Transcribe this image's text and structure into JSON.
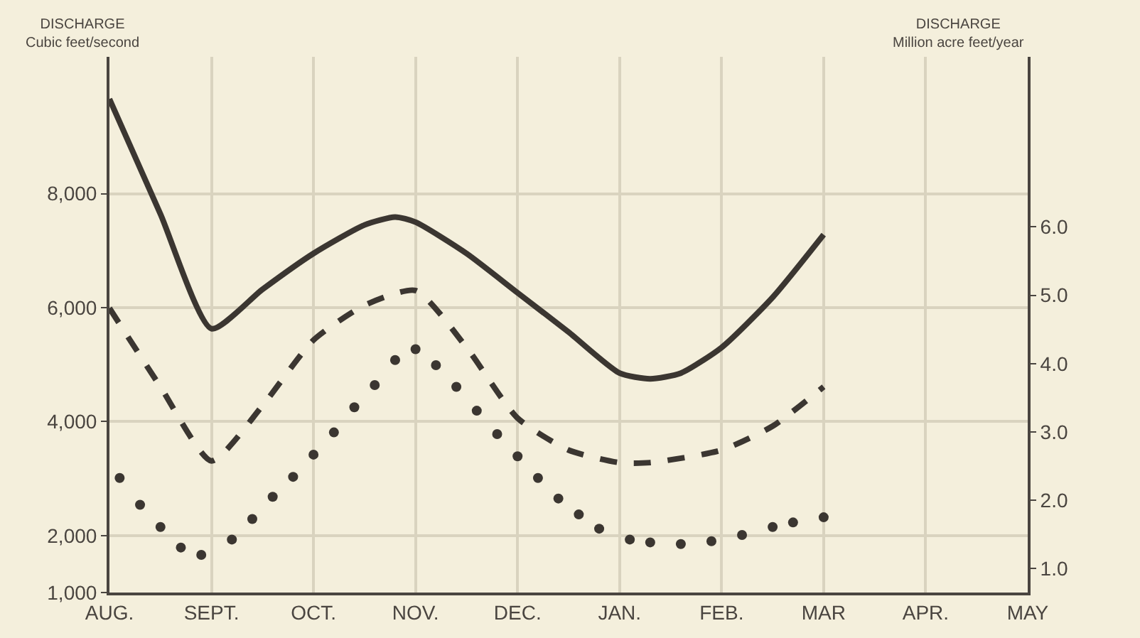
{
  "chart_data": {
    "type": "line",
    "ylabel": "DISCHARGE\nCubic feet/second",
    "y2label": "DISCHARGE\nMillion acre feet/year",
    "categories": [
      "AUG.",
      null,
      null,
      null,
      null,
      null,
      null,
      null,
      null,
      null,
      "SEPT.",
      null,
      null,
      null,
      null,
      null,
      null,
      null,
      null,
      null,
      "OCT.",
      null,
      null,
      null,
      null,
      null,
      null,
      null,
      null,
      null,
      "NOV.",
      null,
      null,
      null,
      null,
      null,
      null,
      null,
      null,
      null,
      "DEC.",
      null,
      null,
      null,
      null,
      null,
      null,
      null,
      null,
      null,
      "JAN.",
      null,
      null,
      null,
      null,
      null,
      null,
      null,
      null,
      null,
      "FEB.",
      null,
      null,
      null,
      null,
      null,
      null,
      null,
      null,
      null,
      "MAR",
      null,
      null,
      null,
      null,
      null,
      null,
      null,
      null,
      null,
      "APR.",
      null,
      null,
      null,
      null,
      null,
      null,
      null,
      null,
      null,
      "MAY"
    ],
    "ylim": [
      1000,
      10400
    ],
    "yticks": [
      {
        "value": 1000,
        "label": "1,000"
      },
      {
        "value": 2000,
        "label": "2,000"
      },
      {
        "value": 4000,
        "label": "4,000"
      },
      {
        "value": 6000,
        "label": "6,000"
      },
      {
        "value": 8000,
        "label": "8,000"
      }
    ],
    "y2lim": [
      0.65,
      8.49
    ],
    "y2ticks": [
      {
        "value": 1,
        "label": "1.0"
      },
      {
        "value": 2,
        "label": "2.0"
      },
      {
        "value": 3,
        "label": "3.0"
      },
      {
        "value": 4,
        "label": "4.0"
      },
      {
        "value": 5,
        "label": "5.0"
      },
      {
        "value": 6,
        "label": "6.0"
      }
    ],
    "grid": true,
    "series": [
      {
        "type": "line",
        "line_style": "solid",
        "color": "#3b3631",
        "values": [
          9660,
          null,
          null,
          null,
          null,
          7640,
          null,
          null,
          null,
          null,
          5630,
          null,
          null,
          null,
          null,
          6320,
          null,
          null,
          null,
          null,
          6950,
          null,
          null,
          null,
          null,
          7450,
          null,
          null,
          7590,
          null,
          7500,
          null,
          null,
          null,
          null,
          6950,
          null,
          null,
          null,
          null,
          6260,
          null,
          null,
          null,
          null,
          5570,
          null,
          null,
          null,
          null,
          4850,
          null,
          null,
          4750,
          null,
          null,
          4850,
          null,
          null,
          null,
          5300,
          null,
          null,
          null,
          null,
          6180,
          null,
          null,
          null,
          null,
          7280,
          null,
          null,
          null,
          null,
          null,
          null,
          null,
          null,
          null,
          null,
          null,
          null,
          null,
          null,
          null,
          null,
          null,
          null,
          null,
          null
        ]
      },
      {
        "type": "line",
        "line_style": "dashed",
        "color": "#3b3631",
        "values": [
          5990,
          null,
          null,
          null,
          null,
          4610,
          null,
          null,
          null,
          null,
          3310,
          null,
          null,
          null,
          null,
          4280,
          null,
          null,
          null,
          null,
          5430,
          null,
          null,
          null,
          null,
          6040,
          null,
          null,
          null,
          null,
          6300,
          null,
          null,
          null,
          null,
          5300,
          null,
          null,
          null,
          null,
          4060,
          null,
          null,
          null,
          null,
          3500,
          null,
          null,
          null,
          null,
          3280,
          null,
          null,
          3280,
          null,
          null,
          null,
          null,
          null,
          null,
          3500,
          null,
          null,
          null,
          null,
          3920,
          null,
          null,
          null,
          null,
          4610,
          null,
          null,
          null,
          null,
          null,
          null,
          null,
          null,
          null,
          null,
          null,
          null,
          null,
          null,
          null,
          null,
          null,
          null,
          null,
          null
        ]
      },
      {
        "type": "scatter",
        "marker": "circle",
        "color": "#3b3631",
        "values": [
          null,
          3010,
          null,
          2540,
          null,
          2150,
          null,
          1790,
          null,
          1660,
          null,
          null,
          1930,
          null,
          2290,
          null,
          2680,
          null,
          3030,
          null,
          3420,
          null,
          3810,
          null,
          4250,
          null,
          4640,
          null,
          5080,
          null,
          5270,
          null,
          4990,
          null,
          4610,
          null,
          4190,
          null,
          3780,
          null,
          3390,
          null,
          3010,
          null,
          2650,
          null,
          2370,
          null,
          2120,
          null,
          null,
          1930,
          null,
          1880,
          null,
          null,
          1850,
          null,
          null,
          1900,
          null,
          null,
          2010,
          null,
          null,
          2150,
          null,
          2230,
          null,
          null,
          2320,
          null,
          null,
          null,
          null,
          null,
          null,
          null,
          null,
          null,
          null,
          null,
          null,
          null,
          null,
          null,
          null,
          null,
          null,
          null,
          null
        ]
      }
    ]
  }
}
